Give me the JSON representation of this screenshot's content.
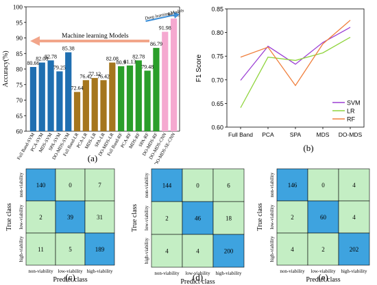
{
  "chart_data": [
    {
      "type": "bar",
      "panel_label": "(a)",
      "ylabel": "Accuracy(%)",
      "ylim": [
        60,
        100
      ],
      "yticks": [
        60,
        65,
        70,
        75,
        80,
        85,
        90,
        95,
        100
      ],
      "annotations": {
        "ml": "Machine learning Models",
        "dl": "Deep learning Models"
      },
      "categories": [
        "Full Band-SVM",
        "PCA-SVM",
        "MDS-SVM",
        "SPA-SVM",
        "DO-MDS-SVM",
        "Full Band-LR",
        "PCA-LR",
        "MDS-LR",
        "SPA-LR",
        "DO-MDS-LR",
        "Full Band-RF",
        "PCA-RF",
        "MDS-RF",
        "SPA-RF",
        "DO-MDS-RF",
        "DO-MDS-CNN",
        "DO-MDS-SE-CNN"
      ],
      "values": [
        80.66,
        82.08,
        82.78,
        79.25,
        85.38,
        72.64,
        76.42,
        77.12,
        76.42,
        82.08,
        80.9,
        81.13,
        82.78,
        79.48,
        86.79,
        91.98,
        96.23
      ],
      "value_labels": [
        "80.66",
        "82.08",
        "82.78",
        "79.25",
        "85.38",
        "72.64",
        "76.42",
        "77.12",
        "76.42",
        "82.08",
        "80.9",
        "81.13",
        "82.78",
        "79.48",
        "86.79",
        "91.98",
        "96.23"
      ],
      "colors": [
        "#1f6fb1",
        "#1f6fb1",
        "#1f6fb1",
        "#1f6fb1",
        "#1f6fb1",
        "#a5761e",
        "#a5761e",
        "#a5761e",
        "#a5761e",
        "#a5761e",
        "#2a9e2a",
        "#2a9e2a",
        "#2a9e2a",
        "#2a9e2a",
        "#2a9e2a",
        "#f5a9d0",
        "#f5a9d0"
      ],
      "label_colors": [
        "#000",
        "#000",
        "#000",
        "#000",
        "#000",
        "#000",
        "#000",
        "#000",
        "#000",
        "#000",
        "#000",
        "#000",
        "#000",
        "#000",
        "#e0457b",
        "#000",
        "#e0457b"
      ]
    },
    {
      "type": "line",
      "panel_label": "(b)",
      "ylabel": "F1 Score",
      "ylim": [
        0.6,
        0.85
      ],
      "yticks": [
        "0.60",
        "0.65",
        "0.70",
        "0.75",
        "0.80",
        "0.85"
      ],
      "categories": [
        "Full Band",
        "PCA",
        "SPA",
        "MDS",
        "DO-MDS"
      ],
      "legend_position": "right",
      "series": [
        {
          "name": "SVM",
          "color": "#9b3fd4",
          "values": [
            0.699,
            0.771,
            0.733,
            0.779,
            0.811
          ]
        },
        {
          "name": "LR",
          "color": "#8fd43c",
          "values": [
            0.641,
            0.748,
            0.741,
            0.757,
            0.79
          ]
        },
        {
          "name": "RF",
          "color": "#f07f3c",
          "values": [
            0.748,
            0.769,
            0.688,
            0.776,
            0.826
          ]
        }
      ]
    },
    {
      "type": "heatmap",
      "panel_label": "(c)",
      "xlabel": "Predict class",
      "ylabel": "True class",
      "classes": [
        "non-viability",
        "low-viability",
        "high-viability"
      ],
      "matrix": [
        [
          140,
          0,
          7
        ],
        [
          2,
          39,
          31
        ],
        [
          11,
          5,
          189
        ]
      ]
    },
    {
      "type": "heatmap",
      "panel_label": "(d)",
      "xlabel": "Predict class",
      "ylabel": "True class",
      "classes": [
        "non-viability",
        "low-viability",
        "high-viability"
      ],
      "matrix": [
        [
          144,
          0,
          6
        ],
        [
          2,
          46,
          18
        ],
        [
          4,
          4,
          200
        ]
      ]
    },
    {
      "type": "heatmap",
      "panel_label": "(e)",
      "xlabel": "Predict class",
      "ylabel": "True class",
      "classes": [
        "non-viability",
        "low-viability",
        "high-viability"
      ],
      "matrix": [
        [
          146,
          0,
          4
        ],
        [
          2,
          60,
          4
        ],
        [
          4,
          2,
          202
        ]
      ]
    }
  ],
  "colors": {
    "cell_diag": "#3ea3df",
    "cell_off": "#c4eec4",
    "arrow_ml": "#f2a58a",
    "arrow_dl": "#3d8fd8"
  }
}
